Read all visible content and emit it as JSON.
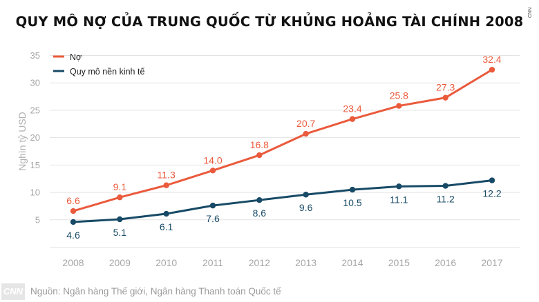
{
  "title": "QUY MÔ NỢ CỦA TRUNG QUỐC TỪ KHỦNG HOẢNG TÀI CHÍNH 2008",
  "side_logo": "CNN",
  "footer": {
    "logo": "CNN",
    "source": "Nguồn: Ngân hàng Thế giới, Ngân hàng Thanh toán Quốc tế"
  },
  "colors": {
    "debt": "#ea5a3c",
    "economy": "#174a66",
    "grid": "#e3e3e3",
    "tick": "#a6a6a6"
  },
  "chart_data": {
    "type": "line",
    "title": "QUY MÔ NỢ CỦA TRUNG QUỐC TỪ KHỦNG HOẢNG TÀI CHÍNH 2008",
    "xlabel": "",
    "ylabel": "Nghìn tỷ USD",
    "x": [
      "2008",
      "2009",
      "2010",
      "2011",
      "2012",
      "2013",
      "2014",
      "2015",
      "2016",
      "2017"
    ],
    "ylim": [
      0,
      35
    ],
    "yticks": [
      5,
      10,
      15,
      20,
      25,
      30,
      35
    ],
    "grid": true,
    "legend": "top-left",
    "series": [
      {
        "name": "Nợ",
        "color": "#ea5a3c",
        "values": [
          6.6,
          9.1,
          11.3,
          14.0,
          16.8,
          20.7,
          23.4,
          25.8,
          27.3,
          32.4
        ],
        "labels": [
          "6.6",
          "9.1",
          "11.3",
          "14.0",
          "16.8",
          "20.7",
          "23.4",
          "25.8",
          "27.3",
          "32.4"
        ],
        "label_position": "above"
      },
      {
        "name": "Quy mô nền kinh tế",
        "color": "#174a66",
        "values": [
          4.6,
          5.1,
          6.1,
          7.6,
          8.6,
          9.6,
          10.5,
          11.1,
          11.2,
          12.2
        ],
        "labels": [
          "4.6",
          "5.1",
          "6.1",
          "7.6",
          "8.6",
          "9.6",
          "10.5",
          "11.1",
          "11.2",
          "12.2"
        ],
        "label_position": "below"
      }
    ]
  }
}
